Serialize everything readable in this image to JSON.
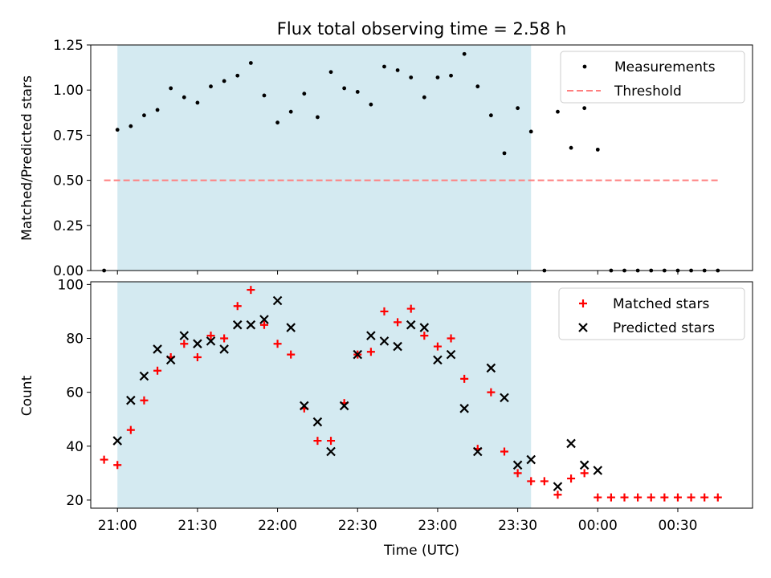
{
  "colors": {
    "shade": "#d4eaf1",
    "measurement": "#000000",
    "threshold": "#ff7f7f",
    "matched": "#ff0000",
    "predicted": "#000000"
  },
  "chart_data": [
    {
      "type": "scatter",
      "title": "Flux total observing time = 2.58 h",
      "ylabel": "Matched/Predicted stars",
      "xlabel": "",
      "ylim": [
        0,
        1.25
      ],
      "yticks": [
        "0.00",
        "0.25",
        "0.50",
        "0.75",
        "1.00",
        "1.25"
      ],
      "shaded_region": [
        "21:00",
        "23:35"
      ],
      "threshold": {
        "name": "Threshold",
        "value": 0.5,
        "x_range": [
          "20:55",
          "00:45"
        ]
      },
      "legend": "top-right",
      "series": [
        {
          "name": "Measurements",
          "points": [
            [
              "20:55",
              0.0
            ],
            [
              "21:00",
              0.78
            ],
            [
              "21:05",
              0.8
            ],
            [
              "21:10",
              0.86
            ],
            [
              "21:15",
              0.89
            ],
            [
              "21:20",
              1.01
            ],
            [
              "21:25",
              0.96
            ],
            [
              "21:30",
              0.93
            ],
            [
              "21:35",
              1.02
            ],
            [
              "21:40",
              1.05
            ],
            [
              "21:45",
              1.08
            ],
            [
              "21:50",
              1.15
            ],
            [
              "21:55",
              0.97
            ],
            [
              "22:00",
              0.82
            ],
            [
              "22:05",
              0.88
            ],
            [
              "22:10",
              0.98
            ],
            [
              "22:15",
              0.85
            ],
            [
              "22:20",
              1.1
            ],
            [
              "22:25",
              1.01
            ],
            [
              "22:30",
              0.99
            ],
            [
              "22:35",
              0.92
            ],
            [
              "22:40",
              1.13
            ],
            [
              "22:45",
              1.11
            ],
            [
              "22:50",
              1.07
            ],
            [
              "22:55",
              0.96
            ],
            [
              "23:00",
              1.07
            ],
            [
              "23:05",
              1.08
            ],
            [
              "23:10",
              1.2
            ],
            [
              "23:15",
              1.02
            ],
            [
              "23:20",
              0.86
            ],
            [
              "23:25",
              0.65
            ],
            [
              "23:30",
              0.9
            ],
            [
              "23:35",
              0.77
            ],
            [
              "23:40",
              0.0
            ],
            [
              "23:45",
              0.88
            ],
            [
              "23:50",
              0.68
            ],
            [
              "23:55",
              0.9
            ],
            [
              "00:00",
              0.67
            ],
            [
              "00:05",
              0.0
            ],
            [
              "00:10",
              0.0
            ],
            [
              "00:15",
              0.0
            ],
            [
              "00:20",
              0.0
            ],
            [
              "00:25",
              0.0
            ],
            [
              "00:30",
              0.0
            ],
            [
              "00:35",
              0.0
            ],
            [
              "00:40",
              0.0
            ],
            [
              "00:45",
              0.0
            ]
          ]
        }
      ]
    },
    {
      "type": "scatter",
      "title": "",
      "xlabel": "Time (UTC)",
      "ylabel": "Count",
      "ylim": [
        17,
        101
      ],
      "yticks": [
        "20",
        "40",
        "60",
        "80",
        "100"
      ],
      "xticks": [
        "21:00",
        "21:30",
        "22:00",
        "22:30",
        "23:00",
        "23:30",
        "00:00",
        "00:30"
      ],
      "xlim": [
        "20:50",
        "00:58"
      ],
      "shaded_region": [
        "21:00",
        "23:35"
      ],
      "legend": "top-right",
      "series": [
        {
          "name": "Matched stars",
          "points": [
            [
              "20:55",
              35
            ],
            [
              "21:00",
              33
            ],
            [
              "21:05",
              46
            ],
            [
              "21:10",
              57
            ],
            [
              "21:15",
              68
            ],
            [
              "21:20",
              73
            ],
            [
              "21:25",
              78
            ],
            [
              "21:30",
              73
            ],
            [
              "21:35",
              81
            ],
            [
              "21:40",
              80
            ],
            [
              "21:45",
              92
            ],
            [
              "21:50",
              98
            ],
            [
              "21:55",
              85
            ],
            [
              "22:00",
              78
            ],
            [
              "22:05",
              74
            ],
            [
              "22:10",
              54
            ],
            [
              "22:15",
              42
            ],
            [
              "22:20",
              42
            ],
            [
              "22:25",
              56
            ],
            [
              "22:30",
              74
            ],
            [
              "22:35",
              75
            ],
            [
              "22:40",
              90
            ],
            [
              "22:45",
              86
            ],
            [
              "22:50",
              91
            ],
            [
              "22:55",
              81
            ],
            [
              "23:00",
              77
            ],
            [
              "23:05",
              80
            ],
            [
              "23:10",
              65
            ],
            [
              "23:15",
              39
            ],
            [
              "23:20",
              60
            ],
            [
              "23:25",
              38
            ],
            [
              "23:30",
              30
            ],
            [
              "23:35",
              27
            ],
            [
              "23:40",
              27
            ],
            [
              "23:45",
              22
            ],
            [
              "23:50",
              28
            ],
            [
              "23:55",
              30
            ],
            [
              "00:00",
              21
            ],
            [
              "00:05",
              21
            ],
            [
              "00:10",
              21
            ],
            [
              "00:15",
              21
            ],
            [
              "00:20",
              21
            ],
            [
              "00:25",
              21
            ],
            [
              "00:30",
              21
            ],
            [
              "00:35",
              21
            ],
            [
              "00:40",
              21
            ],
            [
              "00:45",
              21
            ]
          ]
        },
        {
          "name": "Predicted stars",
          "points": [
            [
              "21:00",
              42
            ],
            [
              "21:05",
              57
            ],
            [
              "21:10",
              66
            ],
            [
              "21:15",
              76
            ],
            [
              "21:20",
              72
            ],
            [
              "21:25",
              81
            ],
            [
              "21:30",
              78
            ],
            [
              "21:35",
              79
            ],
            [
              "21:40",
              76
            ],
            [
              "21:45",
              85
            ],
            [
              "21:50",
              85
            ],
            [
              "21:55",
              87
            ],
            [
              "22:00",
              94
            ],
            [
              "22:05",
              84
            ],
            [
              "22:10",
              55
            ],
            [
              "22:15",
              49
            ],
            [
              "22:20",
              38
            ],
            [
              "22:25",
              55
            ],
            [
              "22:30",
              74
            ],
            [
              "22:35",
              81
            ],
            [
              "22:40",
              79
            ],
            [
              "22:45",
              77
            ],
            [
              "22:50",
              85
            ],
            [
              "22:55",
              84
            ],
            [
              "23:00",
              72
            ],
            [
              "23:05",
              74
            ],
            [
              "23:10",
              54
            ],
            [
              "23:15",
              38
            ],
            [
              "23:20",
              69
            ],
            [
              "23:25",
              58
            ],
            [
              "23:30",
              33
            ],
            [
              "23:35",
              35
            ],
            [
              "23:45",
              25
            ],
            [
              "23:50",
              41
            ],
            [
              "23:55",
              33
            ],
            [
              "00:00",
              31
            ]
          ]
        }
      ]
    }
  ]
}
